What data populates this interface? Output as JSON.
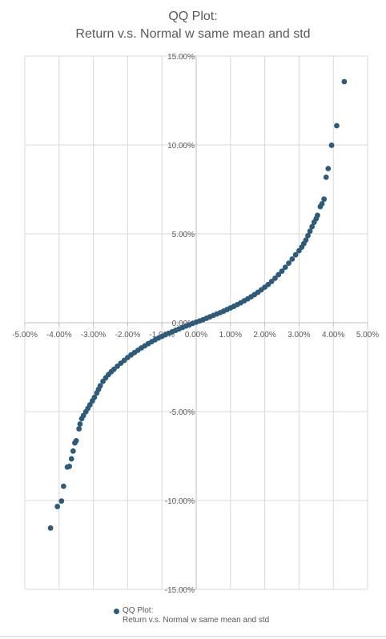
{
  "chart_data": {
    "type": "scatter",
    "title_lines": [
      "QQ Plot:",
      "Return v.s. Normal w same mean and std"
    ],
    "xlabel": "",
    "ylabel": "",
    "xlim": [
      -0.05,
      0.05
    ],
    "ylim": [
      -0.15,
      0.15
    ],
    "x_ticks": [
      -0.05,
      -0.04,
      -0.03,
      -0.02,
      -0.01,
      0.0,
      0.01,
      0.02,
      0.03,
      0.04,
      0.05
    ],
    "x_tick_labels": [
      "-5.00%",
      "-4.00%",
      "-3.00%",
      "-2.00%",
      "-1.00%",
      "0.00%",
      "1.00%",
      "2.00%",
      "3.00%",
      "4.00%",
      "5.00%"
    ],
    "y_ticks": [
      0.15,
      0.1,
      0.05,
      0.0,
      -0.05,
      -0.1,
      -0.15
    ],
    "y_tick_labels": [
      "15.00%",
      "10.00%",
      "5.00%",
      "0.00%",
      "-5.00%",
      "-10.00%",
      "-15.00%"
    ],
    "grid": true,
    "legend_position": "bottom",
    "marker_color": "#2e5b7a",
    "series": [
      {
        "name": "QQ Plot:\nReturn v.s. Normal w same mean and std",
        "points": [
          [
            -0.0425,
            -0.1155
          ],
          [
            -0.0405,
            -0.1034
          ],
          [
            -0.0393,
            -0.1003
          ],
          [
            -0.0387,
            -0.092
          ],
          [
            -0.0376,
            -0.0812
          ],
          [
            -0.037,
            -0.0808
          ],
          [
            -0.0364,
            -0.0766
          ],
          [
            -0.0359,
            -0.0722
          ],
          [
            -0.0354,
            -0.0676
          ],
          [
            -0.035,
            -0.0664
          ],
          [
            -0.0342,
            -0.0597
          ],
          [
            -0.0339,
            -0.057
          ],
          [
            -0.0334,
            -0.054
          ],
          [
            -0.0329,
            -0.0522
          ],
          [
            -0.0322,
            -0.0501
          ],
          [
            -0.0316,
            -0.0482
          ],
          [
            -0.031,
            -0.0462
          ],
          [
            -0.0303,
            -0.044
          ],
          [
            -0.0297,
            -0.042
          ],
          [
            -0.029,
            -0.0395
          ],
          [
            -0.0285,
            -0.0375
          ],
          [
            -0.028,
            -0.0355
          ],
          [
            -0.0272,
            -0.033
          ],
          [
            -0.0264,
            -0.031
          ],
          [
            -0.0256,
            -0.0292
          ],
          [
            -0.0248,
            -0.0276
          ],
          [
            -0.024,
            -0.0262
          ],
          [
            -0.023,
            -0.0245
          ],
          [
            -0.022,
            -0.0228
          ],
          [
            -0.021,
            -0.0212
          ],
          [
            -0.02,
            -0.0196
          ],
          [
            -0.019,
            -0.0181
          ],
          [
            -0.018,
            -0.0168
          ],
          [
            -0.017,
            -0.0155
          ],
          [
            -0.016,
            -0.0142
          ],
          [
            -0.015,
            -0.013
          ],
          [
            -0.014,
            -0.0118
          ],
          [
            -0.013,
            -0.0107
          ],
          [
            -0.012,
            -0.0096
          ],
          [
            -0.011,
            -0.0086
          ],
          [
            -0.01,
            -0.0077
          ],
          [
            -0.009,
            -0.0068
          ],
          [
            -0.008,
            -0.0059
          ],
          [
            -0.007,
            -0.0051
          ],
          [
            -0.006,
            -0.0043
          ],
          [
            -0.005,
            -0.0035
          ],
          [
            -0.004,
            -0.0027
          ],
          [
            -0.003,
            -0.0019
          ],
          [
            -0.002,
            -0.0012
          ],
          [
            -0.001,
            -0.0004
          ],
          [
            0.0,
            0.0003
          ],
          [
            0.001,
            0.001
          ],
          [
            0.002,
            0.0017
          ],
          [
            0.003,
            0.0025
          ],
          [
            0.004,
            0.0033
          ],
          [
            0.005,
            0.0041
          ],
          [
            0.006,
            0.0049
          ],
          [
            0.007,
            0.0057
          ],
          [
            0.008,
            0.0065
          ],
          [
            0.009,
            0.0074
          ],
          [
            0.01,
            0.0083
          ],
          [
            0.011,
            0.0092
          ],
          [
            0.012,
            0.0102
          ],
          [
            0.013,
            0.0112
          ],
          [
            0.014,
            0.0123
          ],
          [
            0.015,
            0.0134
          ],
          [
            0.016,
            0.0146
          ],
          [
            0.017,
            0.0158
          ],
          [
            0.018,
            0.0171
          ],
          [
            0.019,
            0.0185
          ],
          [
            0.02,
            0.02
          ],
          [
            0.021,
            0.0215
          ],
          [
            0.022,
            0.0232
          ],
          [
            0.023,
            0.025
          ],
          [
            0.024,
            0.027
          ],
          [
            0.025,
            0.029
          ],
          [
            0.026,
            0.0312
          ],
          [
            0.027,
            0.0335
          ],
          [
            0.028,
            0.0358
          ],
          [
            0.029,
            0.0382
          ],
          [
            0.03,
            0.0405
          ],
          [
            0.0308,
            0.0425
          ],
          [
            0.0314,
            0.0445
          ],
          [
            0.032,
            0.0465
          ],
          [
            0.0326,
            0.049
          ],
          [
            0.0332,
            0.0515
          ],
          [
            0.0338,
            0.054
          ],
          [
            0.0344,
            0.0565
          ],
          [
            0.035,
            0.0585
          ],
          [
            0.0354,
            0.0604
          ],
          [
            0.0362,
            0.0653
          ],
          [
            0.0367,
            0.0669
          ],
          [
            0.0373,
            0.0695
          ],
          [
            0.0379,
            0.0818
          ],
          [
            0.0385,
            0.0867
          ],
          [
            0.0395,
            0.0998
          ],
          [
            0.041,
            0.1108
          ],
          [
            0.0432,
            0.1356
          ]
        ]
      }
    ]
  },
  "legend": {
    "line1": "QQ Plot:",
    "line2": "Return v.s. Normal w same mean and std"
  }
}
